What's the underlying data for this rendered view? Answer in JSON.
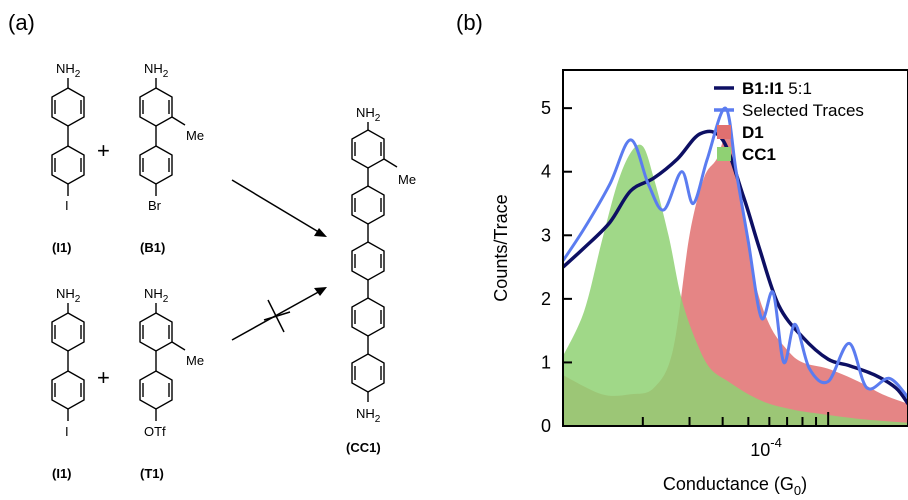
{
  "panel_a": {
    "label": "(a)",
    "atoms": {
      "nh2": "NH2",
      "iodine": "I",
      "bromine": "Br",
      "methyl": "Me",
      "triflate": "OTf"
    },
    "compounds": {
      "i1": "(I1)",
      "b1": "(B1)",
      "t1": "(T1)",
      "cc1": "(CC1)"
    },
    "plus": "+"
  },
  "panel_b": {
    "label": "(b)"
  },
  "chart_data": {
    "type": "area",
    "xlabel": "Conductance (G0)",
    "ylabel": "Counts/Trace",
    "xscale": "log",
    "xlim": [
      1e-05,
      0.0002
    ],
    "ylim": [
      0,
      5.6
    ],
    "yticks": [
      0,
      1,
      2,
      3,
      4,
      5
    ],
    "xtick_label": "10^-4",
    "legend_position": "top-right",
    "legend": [
      {
        "name_bold": "B1:I1",
        "name_rest": " 5:1",
        "color": "#0d0f63",
        "kind": "line"
      },
      {
        "name_bold": "",
        "name_rest": "Selected Traces",
        "color": "#5b7cf0",
        "kind": "line"
      },
      {
        "name_bold": "D1",
        "name_rest": "",
        "color": "#e07070",
        "kind": "patch"
      },
      {
        "name_bold": "CC1",
        "name_rest": "",
        "color": "#8fd173",
        "kind": "patch"
      }
    ],
    "series": [
      {
        "name": "B1:I1 5:1",
        "color": "#0d0f63",
        "style": "line",
        "x": [
          1e-05,
          1.2e-05,
          1.5e-05,
          1.8e-05,
          2.2e-05,
          2.7e-05,
          3.3e-05,
          4e-05,
          4.8e-05,
          5.5e-05,
          6.5e-05,
          8e-05,
          0.0001,
          0.00012,
          0.00015,
          0.00018,
          0.0002
        ],
        "y": [
          2.5,
          2.8,
          3.2,
          3.7,
          3.9,
          4.2,
          4.6,
          4.5,
          3.6,
          2.8,
          1.9,
          1.4,
          1.05,
          0.95,
          0.8,
          0.6,
          0.35
        ]
      },
      {
        "name": "Selected Traces",
        "color": "#5b7cf0",
        "style": "line",
        "x": [
          1e-05,
          1.2e-05,
          1.5e-05,
          1.8e-05,
          2.1e-05,
          2.4e-05,
          2.8e-05,
          3.1e-05,
          3.5e-05,
          4.1e-05,
          4.5e-05,
          5e-05,
          5.6e-05,
          6.2e-05,
          6.8e-05,
          7.5e-05,
          8.5e-05,
          0.0001,
          0.00012,
          0.00014,
          0.00017,
          0.0002
        ],
        "y": [
          2.6,
          3.1,
          3.8,
          4.5,
          3.8,
          3.4,
          4.0,
          3.5,
          4.2,
          5.0,
          4.0,
          2.9,
          1.7,
          2.1,
          1.0,
          1.6,
          0.9,
          0.7,
          1.3,
          0.6,
          0.75,
          0.45
        ]
      },
      {
        "name": "D1",
        "color": "#e07070",
        "style": "area",
        "x": [
          1e-05,
          1.4e-05,
          1.8e-05,
          2.2e-05,
          2.6e-05,
          3e-05,
          3.4e-05,
          3.8e-05,
          4.2e-05,
          4.6e-05,
          5.2e-05,
          6e-05,
          7e-05,
          8e-05,
          0.0001,
          0.00013,
          0.00016,
          0.0002
        ],
        "y": [
          0.8,
          0.5,
          0.5,
          0.6,
          1.2,
          3.0,
          3.9,
          4.2,
          4.6,
          3.8,
          2.4,
          1.6,
          1.2,
          1.0,
          0.9,
          0.7,
          0.5,
          0.35
        ]
      },
      {
        "name": "CC1",
        "color": "#8fd173",
        "style": "area",
        "x": [
          1e-05,
          1.2e-05,
          1.4e-05,
          1.6e-05,
          1.8e-05,
          2e-05,
          2.2e-05,
          2.5e-05,
          2.8e-05,
          3.2e-05,
          3.6e-05,
          4.2e-05,
          5e-05,
          6e-05,
          7.5e-05,
          9e-05,
          0.00011,
          0.00014,
          0.0002
        ],
        "y": [
          1.1,
          1.8,
          2.9,
          3.8,
          4.3,
          4.4,
          3.9,
          3.0,
          2.0,
          1.3,
          0.9,
          0.7,
          0.5,
          0.35,
          0.25,
          0.2,
          0.15,
          0.1,
          0.05
        ]
      }
    ]
  }
}
